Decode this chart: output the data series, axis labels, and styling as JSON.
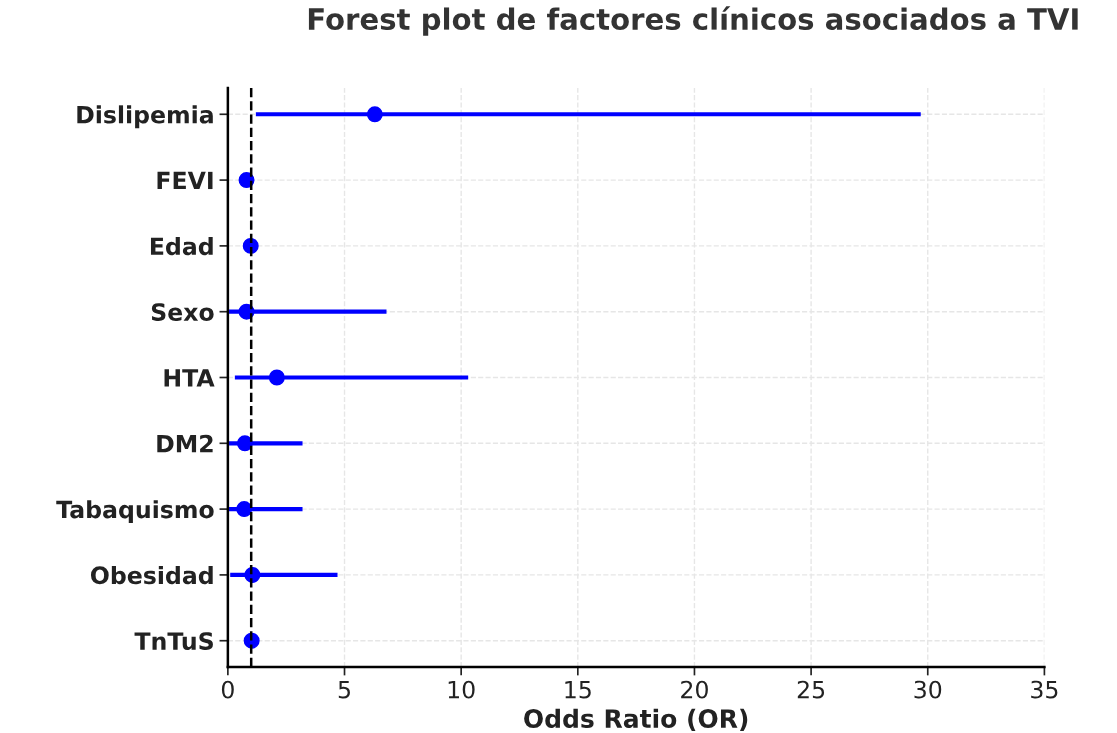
{
  "chart_data": {
    "type": "scatter",
    "orientation": "horizontal",
    "title": "Forest plot de factores clínicos asociados a TVI",
    "xlabel": "Odds Ratio (OR)",
    "categories": [
      "Dislipemia",
      "FEVI",
      "Edad",
      "Sexo",
      "HTA",
      "DM2",
      "Tabaquismo",
      "Obesidad",
      "TnTuS"
    ],
    "series": [
      {
        "color": "#0000ff",
        "values": [
          6.3,
          0.8,
          0.98,
          0.8,
          2.1,
          0.73,
          0.7,
          1.05,
          1.02
        ],
        "errors": [
          [
            1.2,
            29.7
          ],
          null,
          null,
          [
            0.05,
            6.8
          ],
          [
            0.3,
            10.3
          ],
          [
            0.05,
            3.2
          ],
          [
            0.05,
            3.2
          ],
          [
            0.1,
            4.7
          ],
          null
        ]
      }
    ],
    "xlim": [
      0,
      35
    ],
    "xticks": [
      0,
      5,
      10,
      15,
      20,
      25,
      30,
      35
    ],
    "ref_lines": [
      {
        "axis": "x",
        "value": 1,
        "color": "#000000",
        "line_style": "dashed"
      }
    ],
    "grid": true,
    "marker": "circle"
  }
}
